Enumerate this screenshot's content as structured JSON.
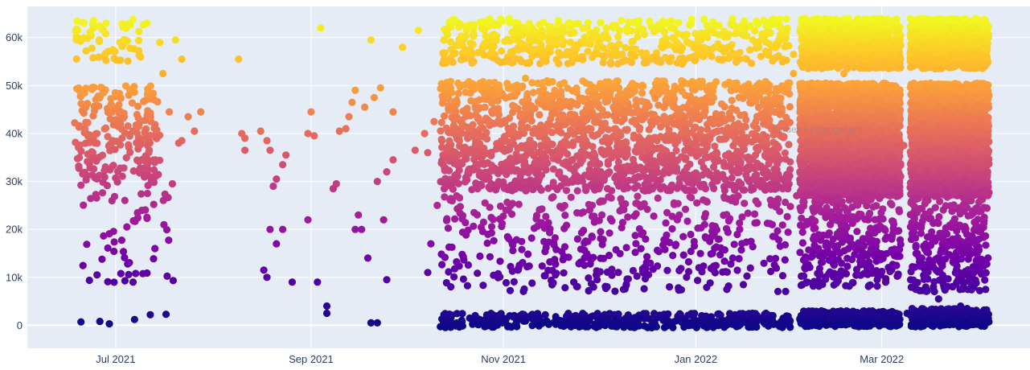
{
  "chart_data": {
    "type": "scatter",
    "title": "",
    "xlabel": "",
    "ylabel": "",
    "x_range": [
      "2021-06-03",
      "2022-04-17"
    ],
    "ylim": [
      -4800,
      66500
    ],
    "grid": true,
    "legend": "none",
    "colorscale": "plasma",
    "color_by": "y",
    "x_ticks": [
      {
        "date": "2021-07-01",
        "label": "Jul 2021"
      },
      {
        "date": "2021-09-01",
        "label": "Sep 2021"
      },
      {
        "date": "2021-11-01",
        "label": "Nov 2021"
      },
      {
        "date": "2022-01-01",
        "label": "Jan 2022"
      },
      {
        "date": "2022-03-01",
        "label": "Mar 2022"
      }
    ],
    "y_ticks": [
      {
        "value": 0,
        "label": "0"
      },
      {
        "value": 10000,
        "label": "10k"
      },
      {
        "value": 20000,
        "label": "20k"
      },
      {
        "value": 30000,
        "label": "30k"
      },
      {
        "value": 40000,
        "label": "40k"
      },
      {
        "value": 50000,
        "label": "50k"
      },
      {
        "value": 60000,
        "label": "60k"
      }
    ],
    "watermark": "nordex • estangelaire",
    "bands": [
      {
        "date_from": "2021-06-18",
        "date_to": "2021-07-15",
        "y_min": 29000,
        "y_max": 50000,
        "count": 220
      },
      {
        "date_from": "2021-06-18",
        "date_to": "2021-07-10",
        "y_min": 55000,
        "y_max": 64000,
        "count": 60
      },
      {
        "date_from": "2021-06-18",
        "date_to": "2021-07-20",
        "y_min": 8000,
        "y_max": 28000,
        "count": 55
      },
      {
        "date_from": "2021-10-12",
        "date_to": "2022-01-31",
        "y_min": 28000,
        "y_max": 51000,
        "count": 1700
      },
      {
        "date_from": "2021-10-12",
        "date_to": "2022-01-31",
        "y_min": 54500,
        "y_max": 64000,
        "count": 520
      },
      {
        "date_from": "2021-10-12",
        "date_to": "2022-01-31",
        "y_min": 7000,
        "y_max": 27000,
        "count": 420
      },
      {
        "date_from": "2021-10-12",
        "date_to": "2022-01-31",
        "y_min": -500,
        "y_max": 2500,
        "count": 380
      },
      {
        "date_from": "2022-02-03",
        "date_to": "2022-03-07",
        "y_min": 27000,
        "y_max": 50500,
        "count": 2400
      },
      {
        "date_from": "2022-02-03",
        "date_to": "2022-03-07",
        "y_min": 53500,
        "y_max": 64000,
        "count": 800
      },
      {
        "date_from": "2022-02-03",
        "date_to": "2022-03-07",
        "y_min": 8000,
        "y_max": 27000,
        "count": 320
      },
      {
        "date_from": "2022-02-03",
        "date_to": "2022-03-07",
        "y_min": -300,
        "y_max": 3000,
        "count": 300
      },
      {
        "date_from": "2022-03-10",
        "date_to": "2022-04-04",
        "y_min": 27000,
        "y_max": 50500,
        "count": 1900
      },
      {
        "date_from": "2022-03-10",
        "date_to": "2022-04-04",
        "y_min": 53500,
        "y_max": 64000,
        "count": 650
      },
      {
        "date_from": "2022-03-10",
        "date_to": "2022-04-04",
        "y_min": 7000,
        "y_max": 27000,
        "count": 300
      },
      {
        "date_from": "2022-03-10",
        "date_to": "2022-04-04",
        "y_min": -300,
        "y_max": 3500,
        "count": 260
      }
    ],
    "points": [
      [
        "2021-06-20",
        700
      ],
      [
        "2021-06-26",
        800
      ],
      [
        "2021-06-29",
        300
      ],
      [
        "2021-07-07",
        1200
      ],
      [
        "2021-07-12",
        2200
      ],
      [
        "2021-07-17",
        2300
      ],
      [
        "2021-06-24",
        62000
      ],
      [
        "2021-06-28",
        63000
      ],
      [
        "2021-07-04",
        62500
      ],
      [
        "2021-07-11",
        63000
      ],
      [
        "2021-07-15",
        59000
      ],
      [
        "2021-07-20",
        59500
      ],
      [
        "2021-07-22",
        55500
      ],
      [
        "2021-07-16",
        52500
      ],
      [
        "2021-07-18",
        44500
      ],
      [
        "2021-07-22",
        38500
      ],
      [
        "2021-07-24",
        43500
      ],
      [
        "2021-07-26",
        40500
      ],
      [
        "2021-07-28",
        44500
      ],
      [
        "2021-07-19",
        29500
      ],
      [
        "2021-07-21",
        38000
      ],
      [
        "2021-08-09",
        55500
      ],
      [
        "2021-08-10",
        40000
      ],
      [
        "2021-08-11",
        39000
      ],
      [
        "2021-08-11",
        36500
      ],
      [
        "2021-08-16",
        40500
      ],
      [
        "2021-08-18",
        38500
      ],
      [
        "2021-08-19",
        36500
      ],
      [
        "2021-08-20",
        29000
      ],
      [
        "2021-08-21",
        30500
      ],
      [
        "2021-08-19",
        20000
      ],
      [
        "2021-08-21",
        17000
      ],
      [
        "2021-08-23",
        20000
      ],
      [
        "2021-08-23",
        33500
      ],
      [
        "2021-08-24",
        35500
      ],
      [
        "2021-08-17",
        11500
      ],
      [
        "2021-08-18",
        10000
      ],
      [
        "2021-08-26",
        9000
      ],
      [
        "2021-08-31",
        22000
      ],
      [
        "2021-08-31",
        40000
      ],
      [
        "2021-09-01",
        44500
      ],
      [
        "2021-09-02",
        39500
      ],
      [
        "2021-09-03",
        9000
      ],
      [
        "2021-09-04",
        62000
      ],
      [
        "2021-09-06",
        4000
      ],
      [
        "2021-09-06",
        2500
      ],
      [
        "2021-09-08",
        28500
      ],
      [
        "2021-09-09",
        29500
      ],
      [
        "2021-09-10",
        40500
      ],
      [
        "2021-09-12",
        41000
      ],
      [
        "2021-09-13",
        43500
      ],
      [
        "2021-09-14",
        46500
      ],
      [
        "2021-09-15",
        20000
      ],
      [
        "2021-09-15",
        49000
      ],
      [
        "2021-09-16",
        23000
      ],
      [
        "2021-09-17",
        20000
      ],
      [
        "2021-09-18",
        45500
      ],
      [
        "2021-09-19",
        14000
      ],
      [
        "2021-09-20",
        59500
      ],
      [
        "2021-09-20",
        500
      ],
      [
        "2021-09-21",
        47500
      ],
      [
        "2021-09-22",
        500
      ],
      [
        "2021-09-22",
        30000
      ],
      [
        "2021-09-23",
        49500
      ],
      [
        "2021-09-24",
        22000
      ],
      [
        "2021-09-25",
        9500
      ],
      [
        "2021-09-27",
        44500
      ],
      [
        "2021-09-25",
        32000
      ],
      [
        "2021-09-30",
        58000
      ],
      [
        "2021-09-27",
        34500
      ],
      [
        "2021-10-05",
        61500
      ],
      [
        "2021-10-07",
        40000
      ],
      [
        "2021-10-08",
        11000
      ],
      [
        "2021-10-09",
        17000
      ],
      [
        "2021-10-10",
        42500
      ],
      [
        "2021-10-11",
        25000
      ],
      [
        "2021-10-08",
        36000
      ],
      [
        "2021-10-04",
        36500
      ],
      [
        "2021-11-08",
        51500
      ],
      [
        "2021-11-23",
        37500
      ],
      [
        "2021-12-05",
        54500
      ],
      [
        "2021-12-18",
        55500
      ],
      [
        "2022-01-10",
        57000
      ],
      [
        "2022-01-22",
        60000
      ],
      [
        "2022-02-01",
        56500
      ],
      [
        "2022-02-01",
        52500
      ],
      [
        "2022-02-02",
        27000
      ],
      [
        "2022-02-17",
        52500
      ],
      [
        "2022-02-18",
        53500
      ],
      [
        "2022-03-08",
        37500
      ],
      [
        "2022-03-09",
        2500
      ],
      [
        "2022-03-19",
        5500
      ],
      [
        "2022-03-24",
        1200
      ],
      [
        "2022-03-26",
        4000
      ],
      [
        "2022-03-30",
        2500
      ]
    ]
  }
}
